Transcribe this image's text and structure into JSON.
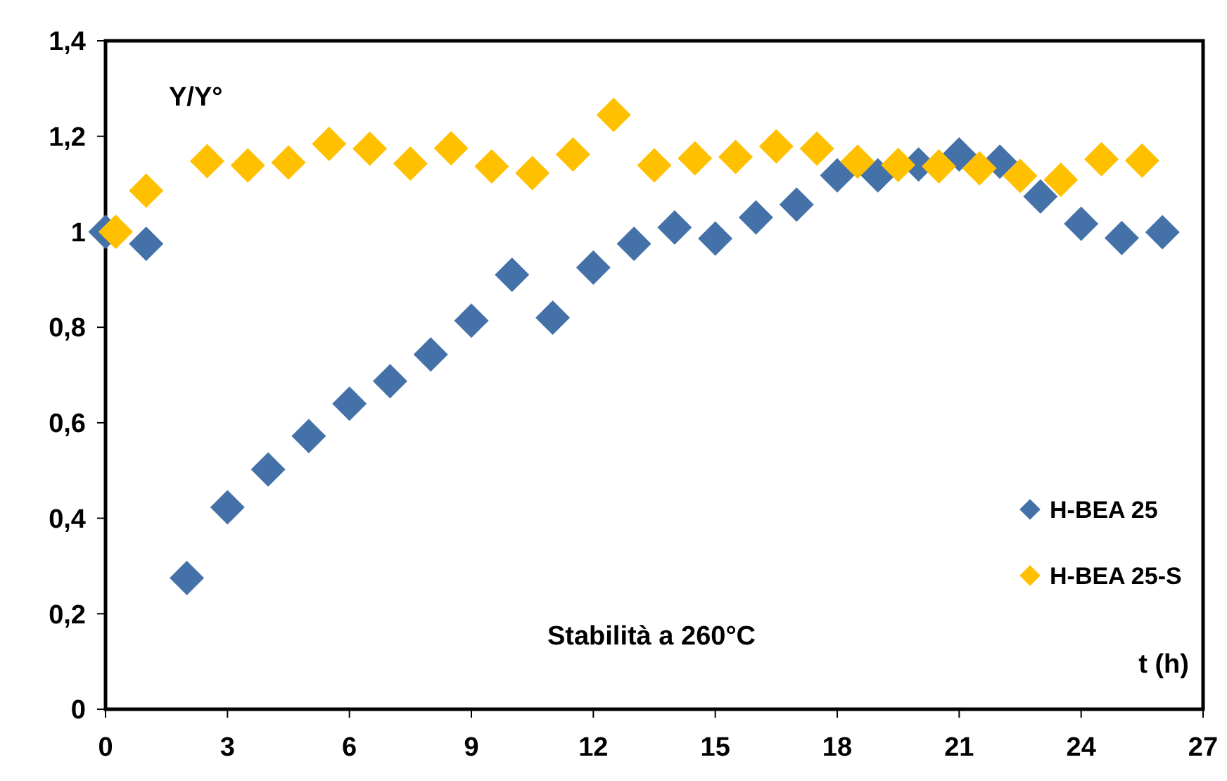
{
  "chart_data": {
    "type": "scatter",
    "xlabel": "t (h)",
    "ylabel": "Y/Y°",
    "annotations": [
      "Stabilità a 260°C"
    ],
    "xlim": [
      0,
      27
    ],
    "xticks": [
      0,
      3,
      6,
      9,
      12,
      15,
      18,
      21,
      24,
      27
    ],
    "ylim": [
      0,
      1.4
    ],
    "yticks": [
      0,
      {
        "value": 0.2,
        "label": "0,2"
      },
      {
        "value": 0.4,
        "label": "0,4"
      },
      {
        "value": 0.6,
        "label": "0,6"
      },
      {
        "value": 0.8,
        "label": "0,8"
      },
      1,
      {
        "value": 1.2,
        "label": "1,2"
      },
      {
        "value": 1.4,
        "label": "1,4"
      }
    ],
    "grid": false,
    "legend": "bottom right",
    "marker": "diamond",
    "series": [
      {
        "name": "H-BEA 25",
        "color": "#4472a8",
        "x": [
          0,
          1,
          2,
          3,
          4,
          5,
          6,
          7,
          8,
          9,
          10,
          11,
          12,
          13,
          14,
          15,
          16,
          17,
          18,
          19,
          20,
          21,
          22,
          23,
          24,
          25,
          26
        ],
        "values": [
          1.0,
          0.975,
          0.275,
          0.423,
          0.502,
          0.572,
          0.64,
          0.687,
          0.743,
          0.814,
          0.91,
          0.82,
          0.925,
          0.975,
          1.009,
          0.986,
          1.03,
          1.057,
          1.118,
          1.118,
          1.141,
          1.162,
          1.147,
          1.074,
          1.017,
          0.987,
          0.999
        ]
      },
      {
        "name": "H-BEA 25-S",
        "color": "#ffc000",
        "x": [
          0.25,
          1,
          2.5,
          3.5,
          4.5,
          5.5,
          6.5,
          7.5,
          8.5,
          9.5,
          10.5,
          11.5,
          12.5,
          13.5,
          14.5,
          15.5,
          16.5,
          17.5,
          18.5,
          19.5,
          20.5,
          21.5,
          22.5,
          23.5,
          24.5,
          25.5
        ],
        "values": [
          1.0,
          1.086,
          1.148,
          1.139,
          1.145,
          1.184,
          1.174,
          1.143,
          1.175,
          1.137,
          1.123,
          1.162,
          1.245,
          1.139,
          1.154,
          1.157,
          1.179,
          1.174,
          1.147,
          1.14,
          1.137,
          1.133,
          1.117,
          1.109,
          1.152,
          1.149
        ]
      }
    ]
  }
}
